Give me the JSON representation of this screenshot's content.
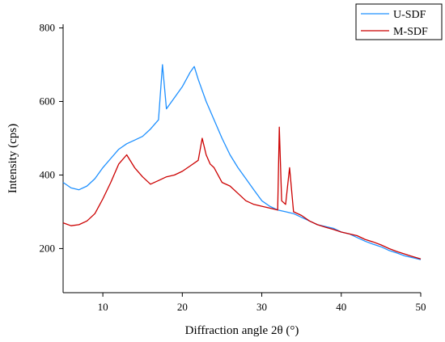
{
  "chart_data": {
    "type": "line",
    "xlabel": "Diffraction angle 2θ (°)",
    "ylabel": "Intensity (cps)",
    "xlim": [
      5,
      50
    ],
    "ylim": [
      80,
      810
    ],
    "xticks": [
      10,
      20,
      30,
      40,
      50
    ],
    "yticks": [
      200,
      400,
      600,
      800
    ],
    "grid": false,
    "legend": "top-right",
    "series": [
      {
        "name": "U-SDF",
        "color": "#1E90FF",
        "x": [
          5,
          6,
          7,
          8,
          9,
          10,
          11,
          12,
          13,
          14,
          15,
          16,
          17,
          17.5,
          18,
          19,
          20,
          21,
          21.5,
          22,
          23,
          24,
          25,
          26,
          27,
          28,
          29,
          30,
          31,
          32,
          33,
          34,
          35,
          36,
          37,
          38,
          39,
          40,
          41,
          42,
          43,
          44,
          45,
          46,
          47,
          48,
          49,
          50
        ],
        "y": [
          380,
          365,
          360,
          370,
          390,
          420,
          445,
          470,
          485,
          495,
          505,
          525,
          550,
          700,
          580,
          610,
          640,
          680,
          695,
          660,
          600,
          550,
          500,
          455,
          420,
          390,
          360,
          330,
          315,
          305,
          300,
          295,
          285,
          275,
          265,
          260,
          255,
          245,
          240,
          230,
          220,
          212,
          205,
          195,
          188,
          180,
          175,
          170
        ]
      },
      {
        "name": "M-SDF",
        "color": "#CC0000",
        "x": [
          5,
          6,
          7,
          8,
          9,
          10,
          11,
          12,
          13,
          14,
          15,
          16,
          17,
          18,
          19,
          20,
          21,
          22,
          22.5,
          23,
          23.5,
          24,
          25,
          26,
          27,
          28,
          29,
          30,
          31,
          32,
          32.2,
          32.5,
          33,
          33.5,
          34,
          35,
          36,
          37,
          38,
          39,
          40,
          41,
          42,
          43,
          44,
          45,
          46,
          47,
          48,
          49,
          50
        ],
        "y": [
          270,
          262,
          265,
          275,
          295,
          335,
          380,
          430,
          455,
          420,
          395,
          375,
          385,
          395,
          400,
          410,
          425,
          440,
          500,
          455,
          430,
          420,
          380,
          370,
          350,
          330,
          320,
          315,
          310,
          305,
          530,
          330,
          320,
          420,
          300,
          290,
          275,
          265,
          258,
          252,
          245,
          240,
          235,
          225,
          218,
          210,
          200,
          192,
          185,
          178,
          172
        ]
      }
    ]
  }
}
